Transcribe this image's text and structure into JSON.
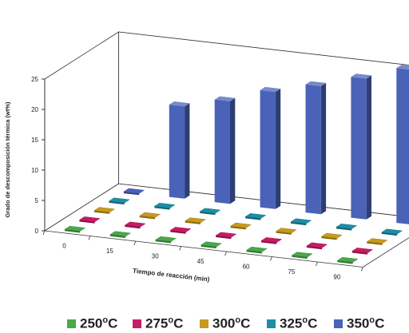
{
  "chart_data": {
    "type": "bar",
    "variant": "3d-clustered-bar",
    "xlabel": "Tiempo de reacción (min)",
    "ylabel": "Grado de descomposición térmica (wt%)",
    "ylim": [
      0,
      25
    ],
    "yticks": [
      "0",
      "5",
      "10",
      "15",
      "20",
      "25"
    ],
    "categories": [
      "0",
      "15",
      "30",
      "45",
      "60",
      "75",
      "90"
    ],
    "gridlines": false,
    "legend_position": "bottom",
    "series": [
      {
        "name": "250°C",
        "color": "#4aa84a",
        "values": [
          0,
          0,
          0,
          0,
          0,
          0,
          0
        ]
      },
      {
        "name": "275°C",
        "color": "#c81a66",
        "values": [
          0,
          0,
          0,
          0,
          0,
          0,
          0
        ]
      },
      {
        "name": "300°C",
        "color": "#c79a1e",
        "values": [
          0,
          0,
          0,
          0,
          0,
          0,
          0
        ]
      },
      {
        "name": "325°C",
        "color": "#1c8fa6",
        "values": [
          0,
          0,
          0,
          0,
          0,
          0,
          0
        ]
      },
      {
        "name": "350°C",
        "color": "#4a63b8",
        "values": [
          0,
          15.2,
          16.9,
          19.3,
          21.1,
          23.2,
          25.5
        ]
      }
    ]
  },
  "legend": [
    {
      "value": "250",
      "unit": "C",
      "color": "#4aa84a"
    },
    {
      "value": "275",
      "unit": "C",
      "color": "#c81a66"
    },
    {
      "value": "300",
      "unit": "C",
      "color": "#c79a1e"
    },
    {
      "value": "325",
      "unit": "C",
      "color": "#1c8fa6"
    },
    {
      "value": "350",
      "unit": "C",
      "color": "#4a63b8"
    }
  ]
}
